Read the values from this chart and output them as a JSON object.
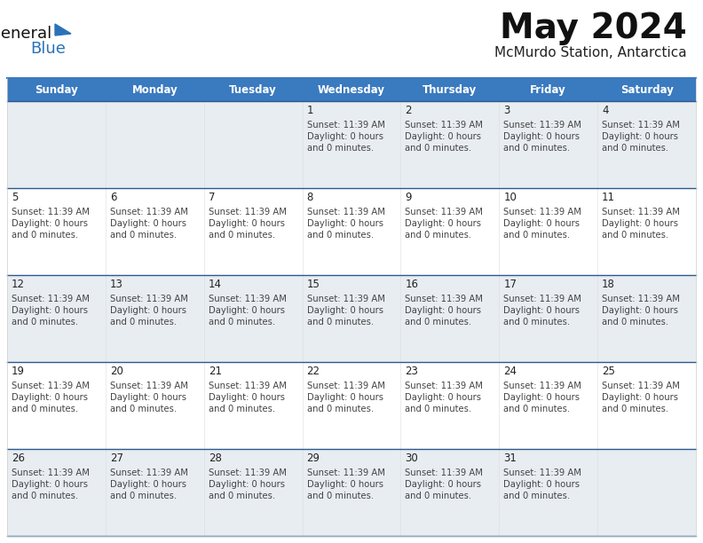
{
  "title": "May 2024",
  "subtitle": "McMurdo Station, Antarctica",
  "header_bg": "#3a7abf",
  "header_text_color": "#ffffff",
  "day_names": [
    "Sunday",
    "Monday",
    "Tuesday",
    "Wednesday",
    "Thursday",
    "Friday",
    "Saturday"
  ],
  "row_bg_light": "#e8edf2",
  "row_bg_white": "#ffffff",
  "row_separator_color": "#2a5a8f",
  "cell_border_color": "#cccccc",
  "cell_text_color": "#444444",
  "date_text_color": "#222222",
  "logo_general_color": "#111111",
  "logo_blue_color": "#2a72b8",
  "weeks": [
    [
      null,
      null,
      null,
      1,
      2,
      3,
      4
    ],
    [
      5,
      6,
      7,
      8,
      9,
      10,
      11
    ],
    [
      12,
      13,
      14,
      15,
      16,
      17,
      18
    ],
    [
      19,
      20,
      21,
      22,
      23,
      24,
      25
    ],
    [
      26,
      27,
      28,
      29,
      30,
      31,
      null
    ]
  ],
  "cell_info": "Sunset: 11:39 AM\nDaylight: 0 hours\nand 0 minutes.",
  "fig_width": 7.92,
  "fig_height": 6.12
}
